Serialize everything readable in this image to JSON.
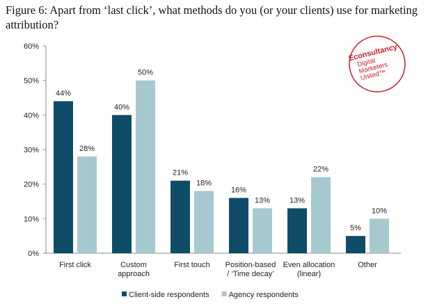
{
  "chart_data": {
    "type": "bar",
    "title": "Figure 6: Apart from ‘last click’, what methods do you (or your clients) use for marketing attribution?",
    "categories": [
      "First click",
      "Custom\napproach",
      "First touch",
      "Position-based\n/ ‘Time decay’",
      "Even allocation\n(linear)",
      "Other"
    ],
    "series": [
      {
        "name": "Client-side respondents",
        "color": "#0f4c68",
        "values": [
          44,
          40,
          21,
          16,
          13,
          5
        ],
        "value_labels": [
          "44%",
          "40%",
          "21%",
          "16%",
          "13%",
          "5%"
        ]
      },
      {
        "name": "Agency respondents",
        "color": "#a6c9d0",
        "values": [
          28,
          50,
          18,
          13,
          22,
          10
        ],
        "value_labels": [
          "28%",
          "50%",
          "18%",
          "13%",
          "22%",
          "10%"
        ]
      }
    ],
    "ylim": [
      0,
      60
    ],
    "yticks": [
      {
        "value": 0,
        "label": "0%"
      },
      {
        "value": 10,
        "label": "10%"
      },
      {
        "value": 20,
        "label": "20%"
      },
      {
        "value": 30,
        "label": "30%"
      },
      {
        "value": 40,
        "label": "40%"
      },
      {
        "value": 50,
        "label": "50%"
      },
      {
        "value": 60,
        "label": "60%"
      }
    ],
    "grid": false,
    "legend": "bottom"
  },
  "logo": {
    "name": "Econsultancy",
    "lines": [
      "Digital",
      "Marketers",
      "United™"
    ]
  }
}
